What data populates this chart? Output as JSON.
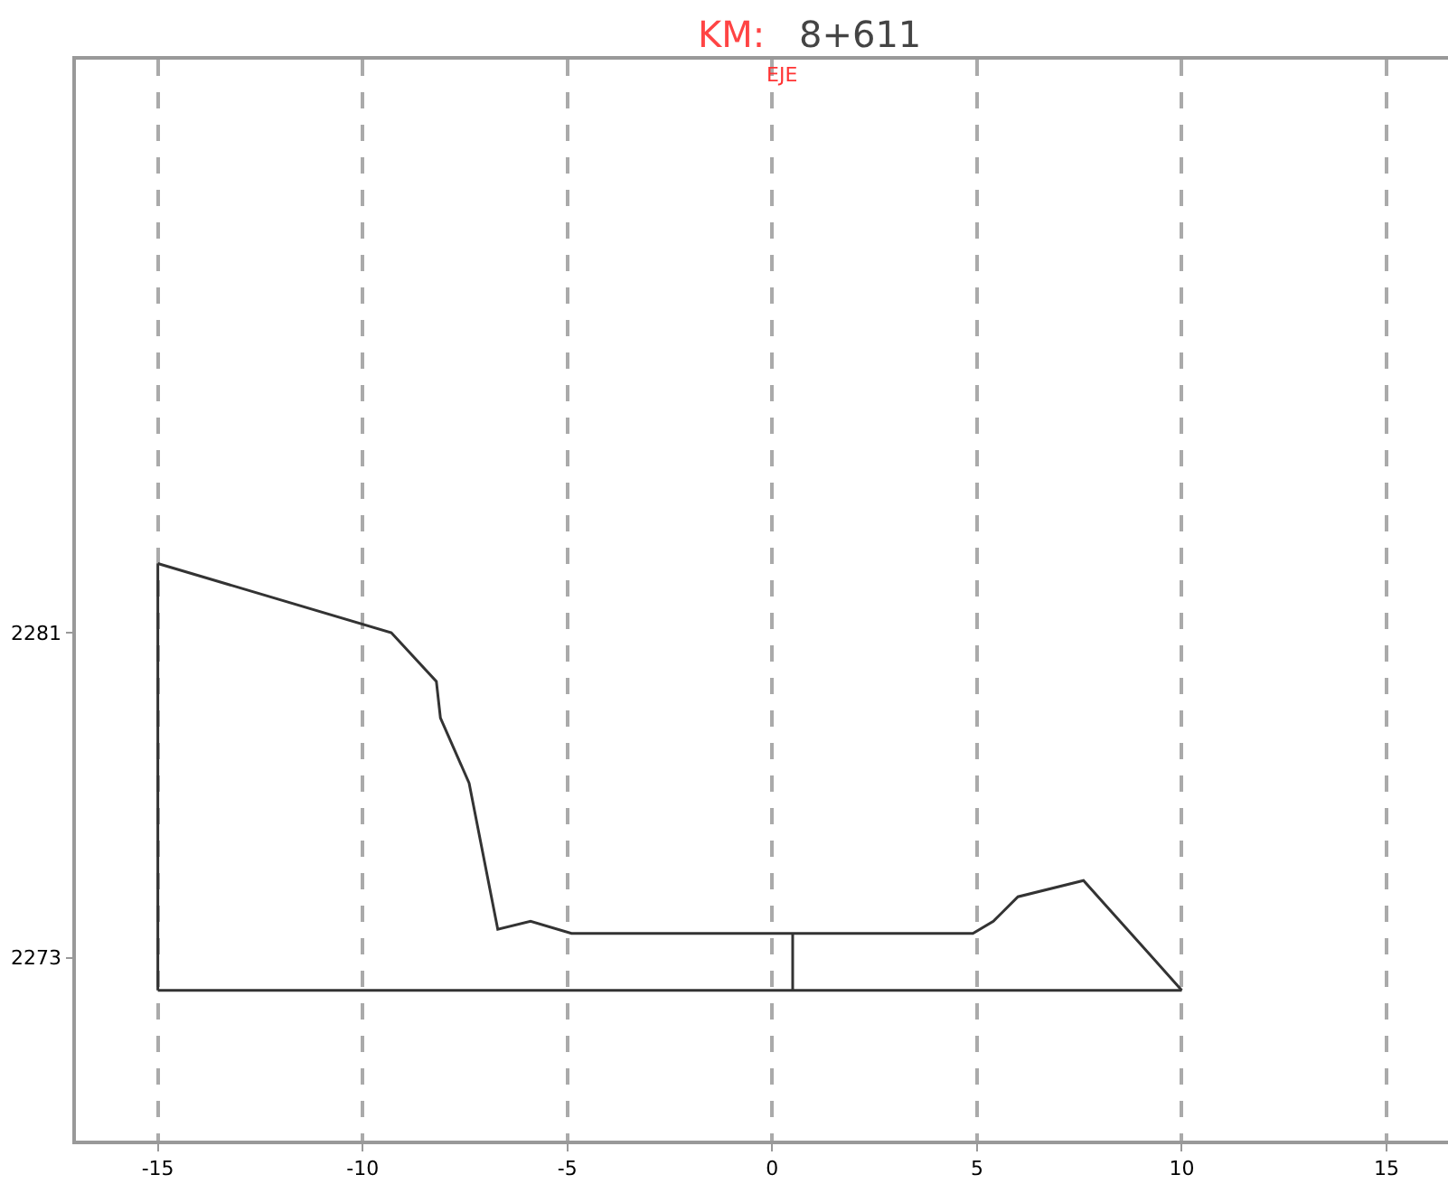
{
  "chart_data": {
    "type": "line",
    "title": "KM:",
    "subtitle": "8+611",
    "annotations": [
      "EJE"
    ],
    "series": [
      {
        "color": "#333333",
        "x": [
          -15,
          -9.3,
          -8.2,
          -8.1,
          -7.4,
          -6.7,
          -5.9,
          -4.9,
          4.9,
          5.4,
          5.6,
          6.0,
          7.6,
          10
        ],
        "values": [
          2282.7,
          2281.0,
          2279.8,
          2278.9,
          2277.3,
          2273.7,
          2273.9,
          2273.6,
          2273.6,
          2273.9,
          2274.1,
          2274.5,
          2274.9,
          2272.2
        ]
      },
      {
        "color": "#333333",
        "x": [
          -15,
          10
        ],
        "values": [
          2272.2,
          2272.2
        ]
      },
      {
        "color": "#333333",
        "x": [
          -15,
          -15
        ],
        "values": [
          2272.2,
          2282.7
        ]
      },
      {
        "color": "#333333",
        "x": [
          0.5,
          0.5
        ],
        "values": [
          2272.2,
          2273.6
        ]
      }
    ],
    "xlim": [
      -17,
      16.5
    ],
    "xticks": [
      -15,
      -10,
      -5,
      0,
      5,
      10,
      15
    ],
    "ylim": [
      2268.5,
      2295.1
    ],
    "yticks": [
      2273,
      2281
    ],
    "grid": "x",
    "marker": "none",
    "line_style": "solid"
  }
}
